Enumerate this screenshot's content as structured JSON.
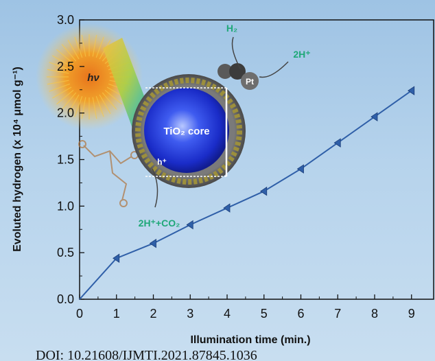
{
  "chart_data": {
    "type": "line",
    "title": "",
    "xlabel": "Illumination time (min.)",
    "ylabel": "Evoluted hydrogen (x 10⁴ μmol g⁻¹)",
    "xlim": [
      0,
      9.6
    ],
    "ylim": [
      0,
      3.0
    ],
    "x_ticks": [
      "0",
      "1",
      "2",
      "3",
      "4",
      "5",
      "6",
      "7",
      "8",
      "9"
    ],
    "y_ticks": [
      "0.0",
      "0.5",
      "1.0",
      "1.5",
      "2.0",
      "2.5",
      "3.0"
    ],
    "series": [
      {
        "x": [
          0,
          1,
          2,
          3,
          4,
          5,
          6,
          7,
          8,
          9
        ],
        "y": [
          0.0,
          0.44,
          0.6,
          0.8,
          0.98,
          1.16,
          1.4,
          1.68,
          1.96,
          2.24
        ],
        "color": "#2f5fa8",
        "marker": "left-triangle"
      }
    ],
    "grid": false,
    "legend": "none"
  },
  "illustration": {
    "core_label": "TiO₂ core",
    "sun_label": "hν",
    "metal_label": "Pt",
    "h2_label": "H₂",
    "proton_label": "2H⁺",
    "product_label": "2H⁺+CO₂",
    "hole_label": "h⁺",
    "annotation_color": "#1fa878"
  },
  "doi_text": "DOI: 10.21608/IJMTI.2021.87845.1036"
}
